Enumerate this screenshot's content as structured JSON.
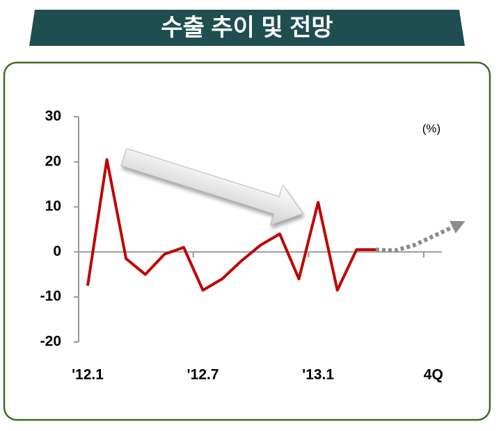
{
  "chart_data": {
    "type": "line",
    "title": "수출 추이 및 전망",
    "unit_label": "(%)",
    "categories": [
      "'12.1",
      null,
      null,
      null,
      null,
      null,
      "'12.7",
      null,
      null,
      null,
      null,
      null,
      "'13.1",
      null,
      null,
      null,
      null,
      null,
      "4Q",
      null
    ],
    "series": [
      {
        "color": "#c00000",
        "style": "solid",
        "values": [
          -7.5,
          20.5,
          -1.5,
          -5,
          -0.5,
          1,
          -8.5,
          -6,
          -2,
          1.5,
          4,
          -6,
          11,
          -8.5,
          0.5,
          0.5,
          null,
          null,
          null,
          null
        ]
      },
      {
        "color": "#8c8c8c",
        "style": "dotted",
        "values": [
          null,
          null,
          null,
          null,
          null,
          null,
          null,
          null,
          null,
          null,
          null,
          null,
          null,
          null,
          null,
          0.5,
          0.3,
          1.5,
          3.5,
          5.5
        ]
      }
    ],
    "ylim": [
      -20,
      30
    ],
    "yticks": [
      -20,
      -10,
      0,
      10,
      20,
      30
    ]
  }
}
